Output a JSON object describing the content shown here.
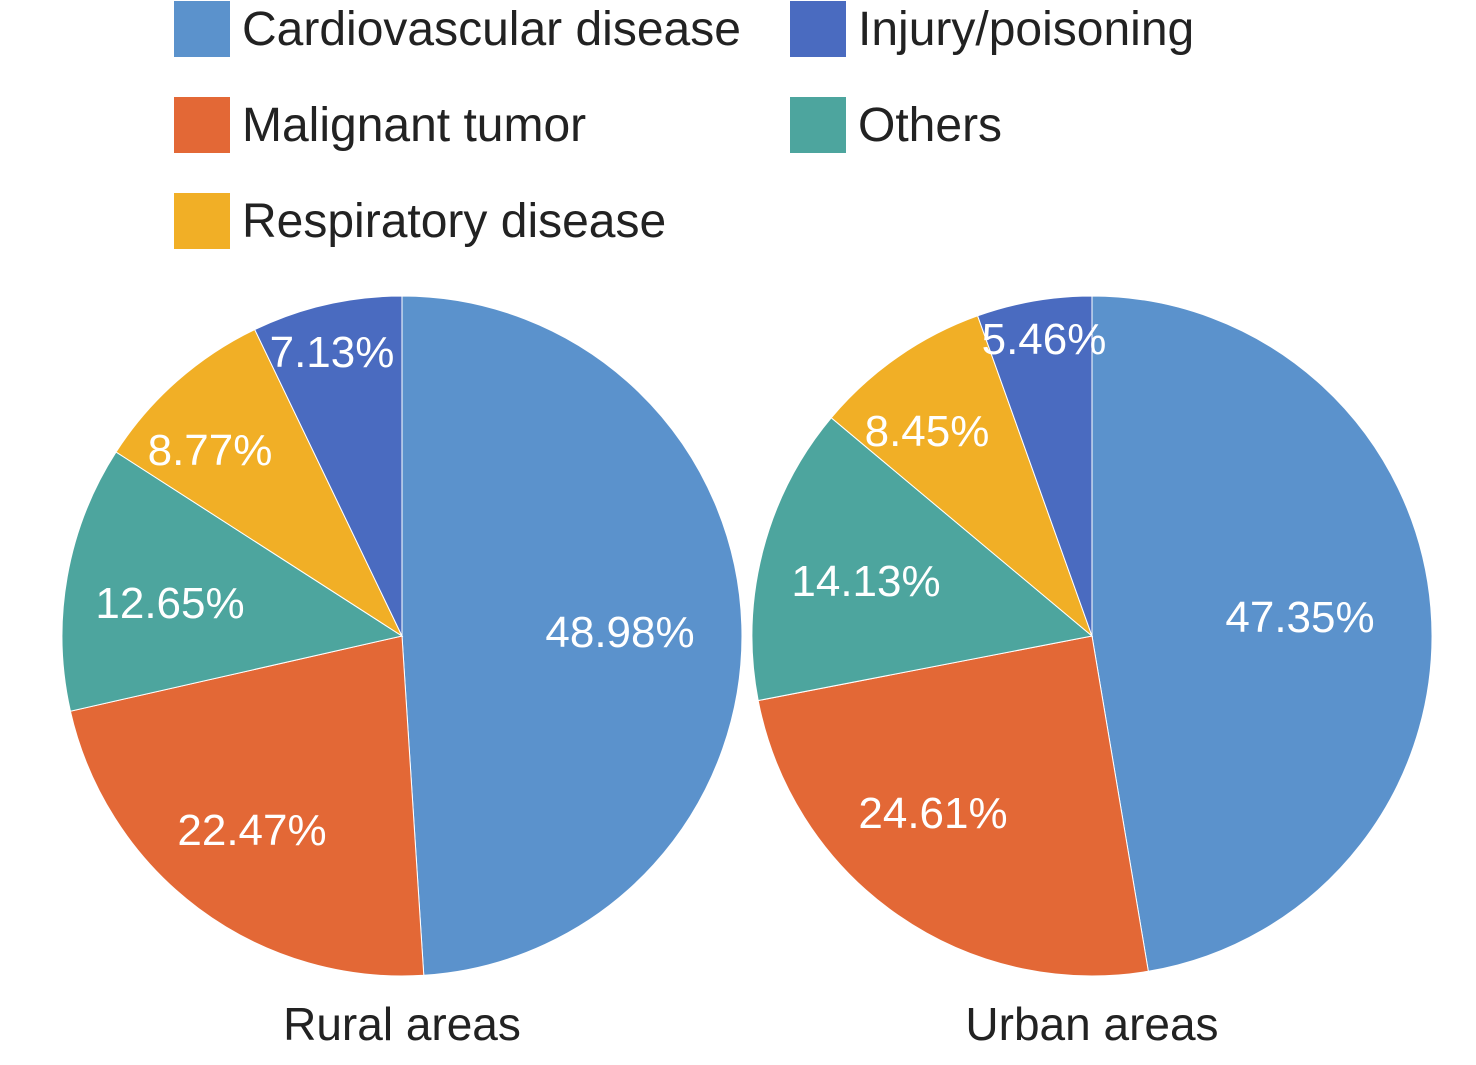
{
  "chart_data": {
    "type": "pie",
    "legend": [
      {
        "name": "Cardiovascular disease",
        "color": "#5B92CC"
      },
      {
        "name": "Injury/poisoning",
        "color": "#4A6BC0"
      },
      {
        "name": "Malignant tumor",
        "color": "#E36836"
      },
      {
        "name": "Others",
        "color": "#4DA59E"
      },
      {
        "name": "Respiratory disease",
        "color": "#F1AF26"
      }
    ],
    "legend_placement": "top",
    "pies": [
      {
        "title": "Rural areas",
        "slices": [
          {
            "category": "Cardiovascular disease",
            "value": 48.98,
            "label": "48.98%"
          },
          {
            "category": "Malignant tumor",
            "value": 22.47,
            "label": "22.47%"
          },
          {
            "category": "Others",
            "value": 12.65,
            "label": "12.65%"
          },
          {
            "category": "Respiratory disease",
            "value": 8.77,
            "label": "8.77%"
          },
          {
            "category": "Injury/poisoning",
            "value": 7.13,
            "label": "7.13%"
          }
        ]
      },
      {
        "title": "Urban areas",
        "slices": [
          {
            "category": "Cardiovascular disease",
            "value": 47.35,
            "label": "47.35%"
          },
          {
            "category": "Malignant tumor",
            "value": 24.61,
            "label": "24.61%"
          },
          {
            "category": "Others",
            "value": 14.13,
            "label": "14.13%"
          },
          {
            "category": "Respiratory disease",
            "value": 8.45,
            "label": "8.45%"
          },
          {
            "category": "Injury/poisoning",
            "value": 5.46,
            "label": "5.46%"
          }
        ]
      }
    ]
  }
}
